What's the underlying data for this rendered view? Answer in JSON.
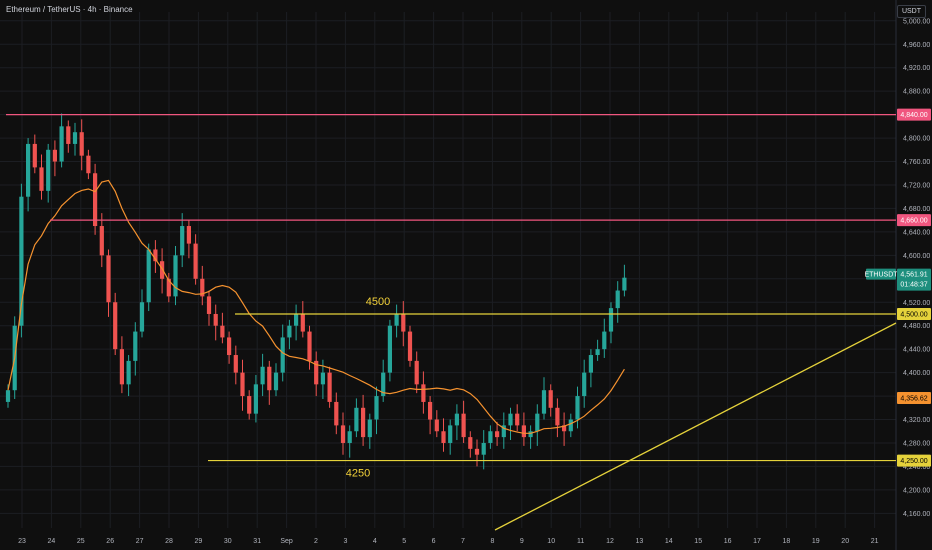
{
  "header": {
    "title": "Ethereum / TetherUS · 4h · Binance",
    "currency": "USDT"
  },
  "colors": {
    "up": "#26a69a",
    "down": "#ef5350",
    "ma": "#f5922f",
    "resistance": "#f0567f",
    "support": "#e5d23b",
    "grid": "#1c1e23"
  },
  "chart_data": {
    "type": "candlestick",
    "ylim": [
      4135,
      5015
    ],
    "y_ticks": [
      4160,
      4200,
      4240,
      4280,
      4320,
      4360,
      4400,
      4440,
      4480,
      4520,
      4560,
      4600,
      4640,
      4680,
      4720,
      4760,
      4800,
      4840,
      4880,
      4920,
      4960,
      5000
    ],
    "x_labels": [
      "23",
      "24",
      "25",
      "26",
      "27",
      "28",
      "29",
      "30",
      "31",
      "Sep",
      "2",
      "3",
      "4",
      "5",
      "6",
      "7",
      "8",
      "9",
      "10",
      "11",
      "12",
      "13",
      "14",
      "15",
      "16",
      "17",
      "18",
      "19",
      "20",
      "21"
    ],
    "horizontal_levels": [
      {
        "price": 4840,
        "label": "4,840.00",
        "style": "resistance"
      },
      {
        "price": 4660,
        "label": "4,660.00",
        "style": "resistance"
      },
      {
        "price": 4500,
        "label": "4,500.00",
        "style": "support",
        "annotation": "4500"
      },
      {
        "price": 4250,
        "label": "4,250.00",
        "style": "support",
        "annotation": "4250"
      }
    ],
    "ticker": {
      "symbol": "ETHUSDT",
      "price": "4,561.91",
      "countdown": "01:48:37"
    },
    "ma_label": "4,356.62",
    "closes": [
      4370,
      4480,
      4700,
      4790,
      4750,
      4710,
      4780,
      4760,
      4820,
      4790,
      4810,
      4770,
      4740,
      4650,
      4600,
      4520,
      4440,
      4380,
      4420,
      4470,
      4520,
      4610,
      4590,
      4560,
      4530,
      4600,
      4650,
      4620,
      4560,
      4530,
      4500,
      4480,
      4460,
      4430,
      4400,
      4360,
      4330,
      4380,
      4410,
      4370,
      4400,
      4460,
      4480,
      4500,
      4470,
      4420,
      4380,
      4400,
      4350,
      4310,
      4280,
      4300,
      4340,
      4290,
      4320,
      4360,
      4400,
      4480,
      4500,
      4470,
      4420,
      4380,
      4350,
      4320,
      4300,
      4280,
      4310,
      4330,
      4290,
      4270,
      4260,
      4280,
      4300,
      4290,
      4310,
      4330,
      4310,
      4290,
      4300,
      4330,
      4370,
      4340,
      4310,
      4300,
      4320,
      4360,
      4400,
      4430,
      4440,
      4470,
      4510,
      4540,
      4561.91
    ]
  }
}
